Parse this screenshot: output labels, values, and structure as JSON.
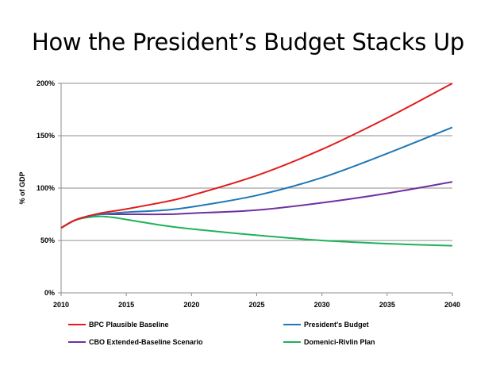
{
  "title": "How the President’s Budget Stacks Up",
  "chart_data": {
    "type": "line",
    "title": "How the President’s Budget Stacks Up",
    "ylabel": "% of GDP",
    "xlabel": "",
    "xlim": [
      2010,
      2040
    ],
    "ylim": [
      0,
      200
    ],
    "x_ticks": [
      "2010",
      "2015",
      "2020",
      "2025",
      "2030",
      "2035",
      "2040"
    ],
    "y_ticks": [
      "0%",
      "50%",
      "100%",
      "150%",
      "200%"
    ],
    "grid": "horizontal",
    "legend": "bottom",
    "x": [
      2010,
      2011,
      2012,
      2013,
      2014,
      2015,
      2018,
      2020,
      2025,
      2030,
      2035,
      2040
    ],
    "series": [
      {
        "name": "BPC Plausible Baseline",
        "color": "#e31b1b",
        "values": [
          62,
          69,
          73,
          76,
          78,
          80,
          87,
          93,
          112,
          137,
          167,
          200
        ]
      },
      {
        "name": "President's Budget",
        "color": "#1f78b4",
        "values": [
          62,
          69,
          73,
          75,
          76,
          77,
          79,
          82,
          93,
          110,
          133,
          158
        ]
      },
      {
        "name": "CBO Extended-Baseline Scenario",
        "color": "#7030a0",
        "values": [
          62,
          69,
          73,
          75,
          75,
          75,
          75,
          76,
          79,
          86,
          95,
          106
        ]
      },
      {
        "name": "Domenici-Rivlin Plan",
        "color": "#1eb25a",
        "values": [
          62,
          69,
          72,
          73,
          72,
          70,
          64,
          61,
          55,
          50,
          47,
          45
        ]
      }
    ]
  }
}
